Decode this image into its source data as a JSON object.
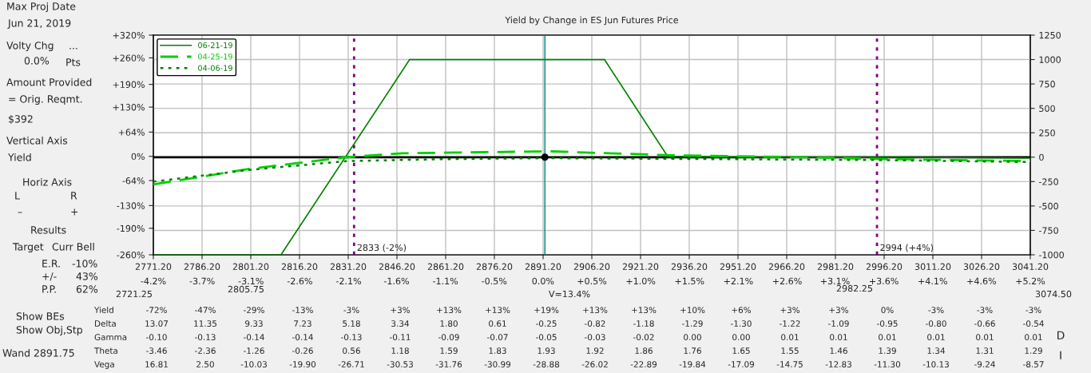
{
  "chart_data": {
    "type": "line",
    "title": "Yield by Change in ES Jun Futures Price",
    "xlim": [
      2771.2,
      3041.2
    ],
    "xticks": [
      {
        "value": 2771.2,
        "label": "2771.20"
      },
      {
        "value": 2786.2,
        "label": "2786.20"
      },
      {
        "value": 2801.2,
        "label": "2801.20"
      },
      {
        "value": 2816.2,
        "label": "2816.20"
      },
      {
        "value": 2831.2,
        "label": "2831.20"
      },
      {
        "value": 2846.2,
        "label": "2846.20"
      },
      {
        "value": 2861.2,
        "label": "2861.20"
      },
      {
        "value": 2876.2,
        "label": "2876.20"
      },
      {
        "value": 2891.2,
        "label": "2891.20"
      },
      {
        "value": 2906.2,
        "label": "2906.20"
      },
      {
        "value": 2921.2,
        "label": "2921.20"
      },
      {
        "value": 2936.2,
        "label": "2936.20"
      },
      {
        "value": 2951.2,
        "label": "2951.20"
      },
      {
        "value": 2966.2,
        "label": "2966.20"
      },
      {
        "value": 2981.2,
        "label": "2981.20"
      },
      {
        "value": 2996.2,
        "label": "2996.20"
      },
      {
        "value": 3011.2,
        "label": "3011.20"
      },
      {
        "value": 3026.2,
        "label": "3026.20"
      },
      {
        "value": 3041.2,
        "label": "3041.20"
      }
    ],
    "x2lim": [
      -4.17,
      5.17
    ],
    "x2ticks": [
      {
        "value": -4.17,
        "label": "-4.2%"
      },
      {
        "value": -3.65,
        "label": "-3.7%"
      },
      {
        "value": -3.13,
        "label": "-3.1%"
      },
      {
        "value": -2.61,
        "label": "-2.6%"
      },
      {
        "value": -2.09,
        "label": "-2.1%"
      },
      {
        "value": -1.58,
        "label": "-1.6%"
      },
      {
        "value": -1.06,
        "label": "-1.1%"
      },
      {
        "value": -0.54,
        "label": "-0.5%"
      },
      {
        "value": -0.02,
        "label": "0.0%"
      },
      {
        "value": 0.5,
        "label": "+0.5%"
      },
      {
        "value": 1.02,
        "label": "+1.0%"
      },
      {
        "value": 1.54,
        "label": "+1.5%"
      },
      {
        "value": 2.06,
        "label": "+2.1%"
      },
      {
        "value": 2.58,
        "label": "+2.6%"
      },
      {
        "value": 3.09,
        "label": "+3.1%"
      },
      {
        "value": 3.61,
        "label": "+3.6%"
      },
      {
        "value": 4.13,
        "label": "+4.1%"
      },
      {
        "value": 4.65,
        "label": "+4.6%"
      },
      {
        "value": 5.17,
        "label": "+5.2%"
      }
    ],
    "ylim": [
      -260,
      320
    ],
    "yticks": [
      {
        "value": 320,
        "label": "+320%"
      },
      {
        "value": 260,
        "label": "+260%"
      },
      {
        "value": 190,
        "label": "+190%"
      },
      {
        "value": 130,
        "label": "+130%"
      },
      {
        "value": 64,
        "label": "+64%"
      },
      {
        "value": 0,
        "label": "0%"
      },
      {
        "value": -64,
        "label": "-64%"
      },
      {
        "value": -130,
        "label": "-130%"
      },
      {
        "value": -190,
        "label": "-190%"
      },
      {
        "value": -260,
        "label": "-260%"
      }
    ],
    "y2lim": [
      -1000,
      1250
    ],
    "y2ticks": [
      1250,
      1000,
      750,
      500,
      250,
      0,
      -250,
      -500,
      -750,
      -1000
    ],
    "grid": true,
    "legend": "top left",
    "series": [
      {
        "name": "06-21-19",
        "axis": "y2",
        "line_style": "solid",
        "color": "#008000",
        "x": [
          2771.2,
          2810.5,
          2850.1,
          2910.1,
          2929.5,
          2960,
          3000,
          3041.2
        ],
        "values": [
          -1000,
          -1000,
          1000,
          1000,
          10,
          0,
          0,
          -10
        ]
      },
      {
        "name": "04-25-19",
        "axis": "y2",
        "line_style": "dashed",
        "color": "#00d000",
        "x": [
          2771.2,
          2800.8,
          2830.8,
          2848,
          2893,
          2930.6,
          2971,
          2996,
          3041.2
        ],
        "values": [
          -280,
          -120,
          0,
          40,
          60,
          20,
          0,
          -20,
          -40
        ]
      },
      {
        "name": "04-06-19",
        "axis": "y2",
        "line_style": "dotted",
        "color": "#008000",
        "x": [
          2771.2,
          2800.8,
          2830.8,
          2860.3,
          2893,
          2946,
          2996,
          3041.2
        ],
        "values": [
          -250,
          -130,
          -40,
          -20,
          -10,
          -20,
          -30,
          -50
        ]
      },
      {
        "type": "scatter",
        "axis": "y2",
        "color": "#000000",
        "x": [
          2891.75
        ],
        "values": [
          0
        ]
      }
    ],
    "ref_lines": [
      {
        "axis": "y2",
        "value": 0,
        "color": "#000000",
        "line_style": "solid"
      },
      {
        "axis": "x",
        "value": 2833,
        "label": "2833 (-2%)",
        "color": "#800080",
        "line_style": "dotted"
      },
      {
        "axis": "x",
        "value": 2994,
        "label": "2994 (+4%)",
        "color": "#800080",
        "line_style": "dotted"
      },
      {
        "axis": "x",
        "value": 2891.75,
        "color": "#008080",
        "line_style": "solid"
      }
    ],
    "annotations": [
      "2721.25",
      "2805.75",
      "V=13.4%",
      "2982.25",
      "3074.50",
      "Max Proj Date",
      "Jun 21, 2019",
      "Volty Chg",
      "...",
      "0.0%",
      "Pts",
      "Amount Provided",
      "= Orig. Reqmt.",
      "$392",
      "Vertical Axis",
      "Yield",
      "Horiz Axis",
      "L",
      "R",
      "–",
      "+",
      "Results",
      "Target",
      "Curr Bell",
      "E.R.",
      "-10%",
      "+/-",
      "43%",
      "P.P.",
      "62%",
      "Show BEs",
      "Show Obj,Stp",
      "Wand",
      "2891.75",
      "Yield",
      "-72%",
      "-47%",
      "-29%",
      "-13%",
      "-3%",
      "+3%",
      "+13%",
      "+13%",
      "+19%",
      "+13%",
      "+13%",
      "+10%",
      "+6%",
      "+3%",
      "+3%",
      "0%",
      "-3%",
      "-3%",
      "-3%",
      "Delta",
      "13.07",
      "11.35",
      "9.33",
      "7.23",
      "5.18",
      "3.34",
      "1.80",
      "0.61",
      "-0.25",
      "-0.82",
      "-1.18",
      "-1.29",
      "-1.30",
      "-1.22",
      "-1.09",
      "-0.95",
      "-0.80",
      "-0.66",
      "-0.54",
      "Gamma",
      "-0.10",
      "-0.13",
      "-0.14",
      "-0.14",
      "-0.13",
      "-0.11",
      "-0.09",
      "-0.07",
      "-0.05",
      "-0.03",
      "-0.02",
      "0.00",
      "0.00",
      "0.01",
      "0.01",
      "0.01",
      "0.01",
      "0.01",
      "0.01",
      "Theta",
      "-3.46",
      "-2.36",
      "-1.26",
      "-0.26",
      "0.56",
      "1.18",
      "1.59",
      "1.83",
      "1.93",
      "1.92",
      "1.86",
      "1.76",
      "1.65",
      "1.55",
      "1.46",
      "1.39",
      "1.34",
      "1.31",
      "1.29",
      "Vega",
      "16.81",
      "2.50",
      "-10.03",
      "-19.90",
      "-26.71",
      "-30.53",
      "-31.76",
      "-30.99",
      "-28.88",
      "-26.02",
      "-22.89",
      "-19.84",
      "-17.09",
      "-14.75",
      "-12.83",
      "-11.30",
      "-10.13",
      "-9.24",
      "-8.57",
      "D",
      "I"
    ]
  }
}
